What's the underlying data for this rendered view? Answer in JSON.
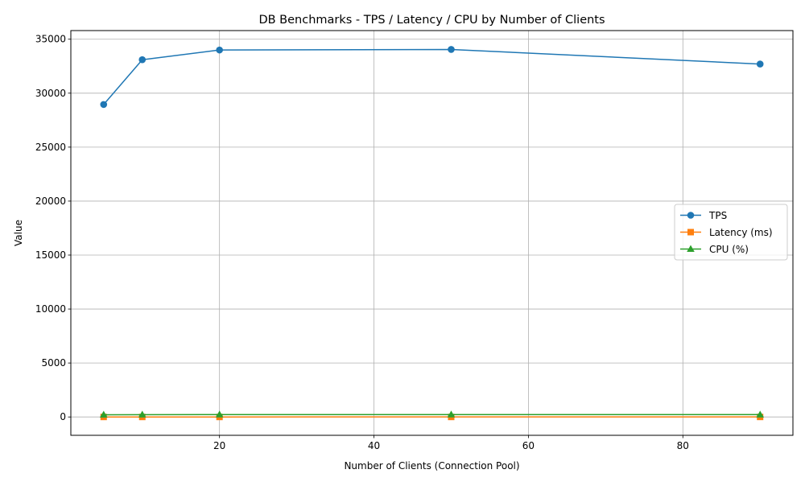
{
  "chart_data": {
    "type": "line",
    "title": "DB Benchmarks - TPS / Latency / CPU by Number of Clients",
    "xlabel": "Number of Clients (Connection Pool)",
    "ylabel": "Value",
    "xlim": [
      0.75,
      94.25
    ],
    "ylim": [
      -1700,
      35800
    ],
    "x_ticks": [
      20,
      40,
      60,
      80
    ],
    "y_ticks": [
      0,
      5000,
      10000,
      15000,
      20000,
      25000,
      30000,
      35000
    ],
    "grid": true,
    "legend_position": "center-right",
    "x": [
      5,
      10,
      20,
      50,
      90
    ],
    "series": [
      {
        "name": "TPS",
        "color": "#1f77b4",
        "marker": "circle",
        "values": [
          28950,
          33100,
          34000,
          34050,
          32700
        ]
      },
      {
        "name": "Latency (ms)",
        "color": "#ff7f0e",
        "marker": "square",
        "values": [
          0.2,
          0.3,
          0.6,
          1.5,
          2.8
        ]
      },
      {
        "name": "CPU (%)",
        "color": "#2ca02c",
        "marker": "triangle",
        "values": [
          200,
          210,
          220,
          220,
          215
        ]
      }
    ]
  }
}
